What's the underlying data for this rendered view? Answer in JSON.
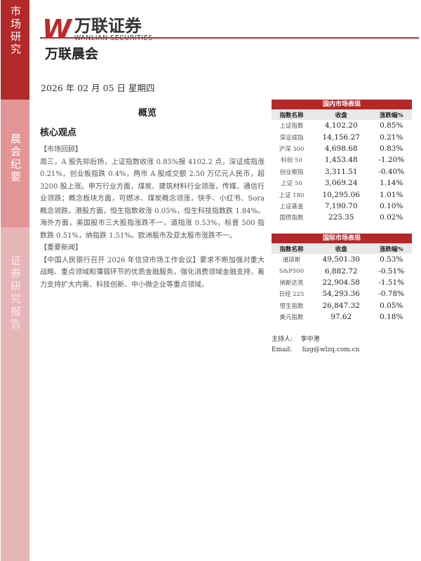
{
  "sidebar": {
    "items": [
      "市场研究",
      "晨会纪要",
      "证券研究报告"
    ]
  },
  "logo": {
    "mark": "W",
    "cn": "万联证券",
    "en": "WANLIAN SECURITIES"
  },
  "header": {
    "title": "万联晨会",
    "date": "2026 年 02 月 05 日  星期四"
  },
  "overview_label": "概览",
  "core_label": "核心观点",
  "body": {
    "market_review_label": "【市场回顾】",
    "market_review": "周三，A 股先抑后扬，上证指数收涨 0.85%报 4102.2 点，深证成指涨 0.21%，创业板指跌 0.4%，两市 A 股成交额 2.50 万亿元人民币，超 3200 股上涨。申万行业方面，煤炭、建筑材料行业领涨，传媒、通信行业领跌；概念板块方面，可燃冰、煤炭概念领涨，快手、小红书、Sora 概念领跌。港股方面，恒生指数收涨 0.05%，恒生科技指数跌 1.84%。海外方面，美国股市三大股指涨跌不一，道指涨 0.53%，标普 500 指数跌 0.51%，纳指跌 1.51%。欧洲股市及亚太股市涨跌不一。",
    "news_label": "【重要新闻】",
    "news": "【中国人民银行召开 2026 年信贷市场工作会议】要求不断加强对重大战略、重点领域和薄弱环节的优质金融服务，强化消费领域金融支持，着力支持扩大内需、科技创新、中小微企业等重点领域。"
  },
  "domestic": {
    "title": "国内市场表现",
    "headers": [
      "指数名称",
      "收盘",
      "涨跌幅%"
    ],
    "rows": [
      [
        "上证指数",
        "4,102.20",
        "0.85%"
      ],
      [
        "深证成指",
        "14,156.27",
        "0.21%"
      ],
      [
        "沪深 300",
        "4,698.68",
        "0.83%"
      ],
      [
        "科创 50",
        "1,453.48",
        "-1.20%"
      ],
      [
        "创业板指",
        "3,311.51",
        "-0.40%"
      ],
      [
        "上证 50",
        "3,069.24",
        "1.14%"
      ],
      [
        "上证 180",
        "10,295.06",
        "1.01%"
      ],
      [
        "上证基金",
        "7,190.70",
        "0.10%"
      ],
      [
        "国债指数",
        "225.35",
        "0.02%"
      ]
    ]
  },
  "international": {
    "title": "国际市场表现",
    "headers": [
      "指数名称",
      "收盘",
      "涨跌幅%"
    ],
    "rows": [
      [
        "道琼斯",
        "49,501.30",
        "0.53%"
      ],
      [
        "S&P500",
        "6,882.72",
        "-0.51%"
      ],
      [
        "纳斯达克",
        "22,904.58",
        "-1.51%"
      ],
      [
        "日经 225",
        "54,293.36",
        "-0.78%"
      ],
      [
        "恒生指数",
        "26,847.32",
        "0.05%"
      ],
      [
        "美元指数",
        "97.62",
        "0.18%"
      ]
    ]
  },
  "contact": {
    "host_label": "主持人:",
    "host": "李中港",
    "email_label": "Email:",
    "email": "lizg@wlzq.com.cn"
  },
  "colors": {
    "brand": "#b3292a"
  }
}
